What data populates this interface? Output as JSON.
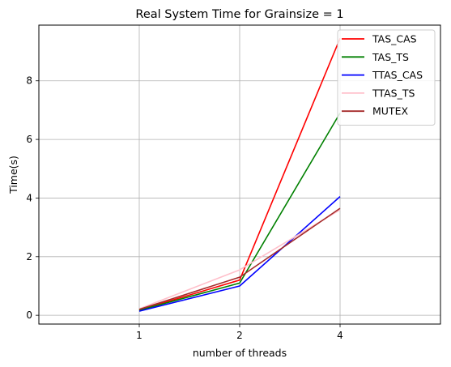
{
  "chart_data": {
    "type": "line",
    "title": "Real System Time for Grainsize = 1",
    "xlabel": "number of threads",
    "ylabel": "Time(s)",
    "x_categories": [
      "1",
      "2",
      "4"
    ],
    "xlim": [
      0,
      4
    ],
    "ylim": [
      -0.3,
      9.9
    ],
    "yticks": [
      0,
      2,
      4,
      6,
      8
    ],
    "grid": true,
    "legend_position": "top-right",
    "series": [
      {
        "name": "TAS_CAS",
        "color": "#ff0000",
        "values": [
          0.18,
          1.2,
          9.45
        ]
      },
      {
        "name": "TAS_TS",
        "color": "#008000",
        "values": [
          0.17,
          1.1,
          6.9
        ]
      },
      {
        "name": "TTAS_CAS",
        "color": "#0000ff",
        "values": [
          0.14,
          1.0,
          4.05
        ]
      },
      {
        "name": "TTAS_TS",
        "color": "#ffc0cb",
        "values": [
          0.22,
          1.55,
          3.6
        ]
      },
      {
        "name": "MUTEX",
        "color": "#a52a2a",
        "values": [
          0.2,
          1.3,
          3.65
        ]
      }
    ]
  }
}
